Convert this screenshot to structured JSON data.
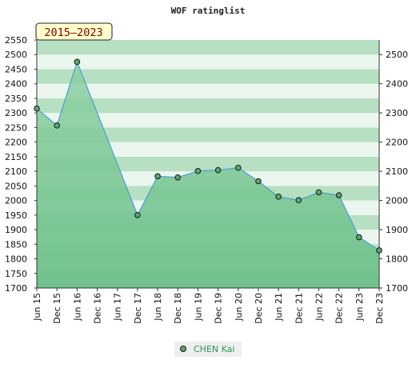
{
  "chart_data": {
    "type": "area",
    "title": "WOF ratinglist",
    "range_label": "2015–2023",
    "xlabel": "",
    "ylabel": "",
    "categories": [
      "Jun 15",
      "Dec 15",
      "Jun 16",
      "Dec 16",
      "Jun 17",
      "Dec 17",
      "Jun 18",
      "Dec 18",
      "Jun 19",
      "Dec 19",
      "Jun 20",
      "Dec 20",
      "Jun 21",
      "Dec 21",
      "Jun 22",
      "Dec 22",
      "Jun 23",
      "Dec 23"
    ],
    "series": [
      {
        "name": "CHEN Kai",
        "values": [
          2315,
          2257,
          2475,
          null,
          null,
          1950,
          2083,
          2079,
          2101,
          2104,
          2112,
          2066,
          2013,
          2001,
          2028,
          2018,
          1874,
          1829
        ]
      }
    ],
    "ylim": [
      1700,
      2550
    ],
    "yticks_left": [
      1700,
      1750,
      1800,
      1850,
      1900,
      1950,
      2000,
      2050,
      2100,
      2150,
      2200,
      2250,
      2300,
      2350,
      2400,
      2450,
      2500,
      2550
    ],
    "yticks_right": [
      1700,
      1800,
      1900,
      2000,
      2100,
      2200,
      2300,
      2400,
      2500
    ],
    "grid": "horizontal bands",
    "legend": "bottom-center",
    "colors": {
      "line": "#4aa0d5",
      "fill": "#6cc08a",
      "marker_fill": "#5aa86a",
      "marker_stroke": "#1a1a1a",
      "band_dark": "#b7e0c2",
      "band_light": "#eaf6ee",
      "range_box_bg": "#ffffcc",
      "range_box_text": "#8a0000",
      "legend_text": "#2c9a55",
      "legend_bg": "#eeeeee"
    }
  }
}
